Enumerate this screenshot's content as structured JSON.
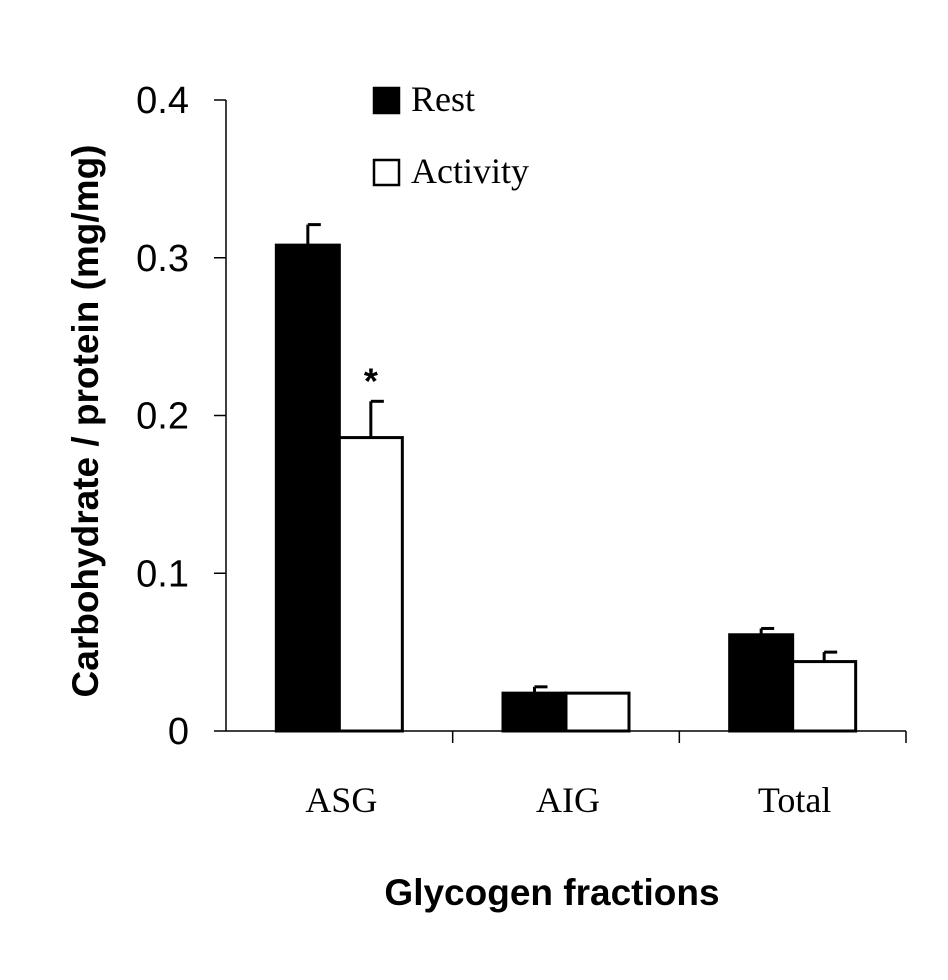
{
  "chart_data": {
    "type": "bar",
    "xlabel": "Glycogen fractions",
    "ylabel": "Carbohydrate / protein (mg/mg)",
    "ylim": [
      0,
      0.4
    ],
    "yticks": [
      "0",
      "0.1",
      "0.2",
      "0.3",
      "0.4"
    ],
    "ytick_values": [
      0,
      0.1,
      0.2,
      0.3,
      0.4
    ],
    "categories": [
      "ASG",
      "AIG",
      "Total"
    ],
    "series": [
      {
        "name": "Rest",
        "values": [
          0.308,
          0.024,
          0.061
        ],
        "errors": [
          0.013,
          0.004,
          0.004
        ],
        "color": "#000000"
      },
      {
        "name": "Activity",
        "values": [
          0.186,
          0.024,
          0.044
        ],
        "errors": [
          0.023,
          0.0,
          0.006
        ],
        "color": "#ffffff"
      }
    ],
    "annotations": [
      {
        "text": "*",
        "category": "ASG",
        "series": "Activity"
      }
    ],
    "legend_position": "top-center",
    "grid": false
  }
}
